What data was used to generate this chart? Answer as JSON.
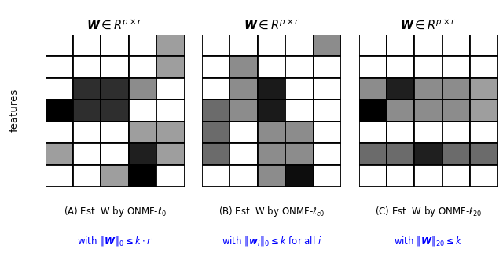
{
  "figsize": [
    6.4,
    3.35
  ],
  "dpi": 100,
  "background": "#ffffff",
  "panel_A": {
    "grid": [
      [
        1.0,
        1.0,
        1.0,
        1.0,
        0.62
      ],
      [
        1.0,
        1.0,
        1.0,
        1.0,
        0.62
      ],
      [
        1.0,
        0.18,
        0.18,
        0.55,
        1.0
      ],
      [
        0.0,
        0.18,
        0.18,
        1.0,
        1.0
      ],
      [
        1.0,
        1.0,
        1.0,
        0.62,
        0.62
      ],
      [
        0.62,
        1.0,
        1.0,
        0.12,
        0.62
      ],
      [
        1.0,
        1.0,
        0.62,
        0.0,
        1.0
      ]
    ]
  },
  "panel_B": {
    "grid": [
      [
        1.0,
        1.0,
        1.0,
        1.0,
        0.55
      ],
      [
        1.0,
        0.55,
        1.0,
        1.0,
        1.0
      ],
      [
        1.0,
        0.55,
        0.1,
        1.0,
        1.0
      ],
      [
        0.42,
        0.55,
        0.1,
        1.0,
        1.0
      ],
      [
        0.42,
        1.0,
        0.55,
        0.55,
        1.0
      ],
      [
        0.42,
        1.0,
        0.55,
        0.55,
        1.0
      ],
      [
        1.0,
        1.0,
        0.55,
        0.05,
        1.0
      ]
    ]
  },
  "panel_C": {
    "grid": [
      [
        1.0,
        1.0,
        1.0,
        1.0,
        1.0
      ],
      [
        1.0,
        1.0,
        1.0,
        1.0,
        1.0
      ],
      [
        0.55,
        0.12,
        0.55,
        0.55,
        0.62
      ],
      [
        0.0,
        0.55,
        0.55,
        0.55,
        0.62
      ],
      [
        1.0,
        1.0,
        1.0,
        1.0,
        1.0
      ],
      [
        0.42,
        0.42,
        0.12,
        0.42,
        0.42
      ],
      [
        1.0,
        1.0,
        1.0,
        1.0,
        1.0
      ]
    ]
  },
  "caption_A_line1": "(A) Est. W by ONMF-$\\ell_0$",
  "caption_A_line2": "with $\\|\\boldsymbol{W}\\|_0 \\leq k \\cdot r$",
  "caption_B_line1": "(B) Est. W by ONMF-$\\ell_{c0}$",
  "caption_B_line2": "with $\\|\\boldsymbol{w}_i\\|_0 \\leq k$ for all $i$",
  "caption_C_line1": "(C) Est. W by ONMF-$\\ell_{20}$",
  "caption_C_line2": "with $\\|\\boldsymbol{W}\\|_{20} \\leq k$",
  "title_text": "$\\boldsymbol{W} \\in R^{p \\times r}$",
  "features_label": "features"
}
